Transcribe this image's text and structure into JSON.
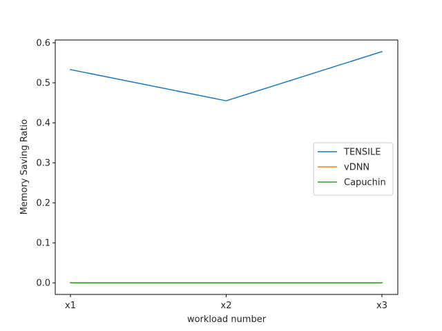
{
  "chart_data": {
    "type": "line",
    "title": "",
    "xlabel": "workload number",
    "ylabel": "Memory Saving Ratio",
    "categories": [
      "x1",
      "x2",
      "x3"
    ],
    "ylim": [
      -0.029,
      0.607
    ],
    "yticks": [
      0.0,
      0.1,
      0.2,
      0.3,
      0.4,
      0.5,
      0.6
    ],
    "ytick_labels": [
      "0.0",
      "0.1",
      "0.2",
      "0.3",
      "0.4",
      "0.5",
      "0.6"
    ],
    "grid": false,
    "legend_position": "center-right",
    "series": [
      {
        "name": "TENSILE",
        "color": "#1f77b4",
        "values": [
          0.533,
          0.455,
          0.578
        ]
      },
      {
        "name": "vDNN",
        "color": "#ff7f0e",
        "values": [
          0.0,
          0.0,
          0.0
        ]
      },
      {
        "name": "Capuchin",
        "color": "#2ca02c",
        "values": [
          0.0,
          0.0,
          0.0
        ]
      }
    ]
  }
}
